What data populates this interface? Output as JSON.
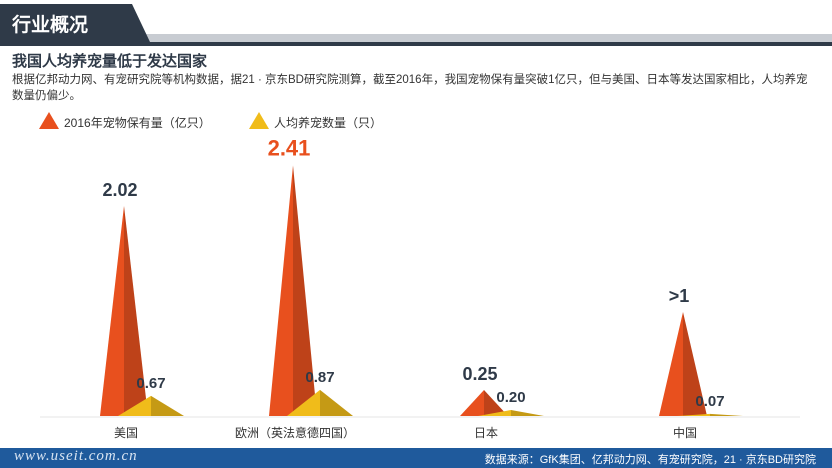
{
  "header": {
    "title": "行业概况"
  },
  "subtitle": "我国人均养宠量低于发达国家",
  "description": "根据亿邦动力网、有宠研究院等机构数据，据21 · 京东BD研究院测算，截至2016年，我国宠物保有量突破1亿只，但与美国、日本等发达国家相比，人均养宠数量仍偏少。",
  "footer": {
    "watermark": "www.useit.com.cn",
    "source": "数据来源：GfK集团、亿邦动力网、有宠研究院，21 · 京东BD研究院"
  },
  "colors": {
    "pet_count": "#e8501e",
    "per_capita": "#f0bc1a",
    "header": "#2f3a48",
    "footer": "#1f5a9c"
  },
  "chart_data": {
    "type": "bar",
    "marker": "cone",
    "categories": [
      "美国",
      "欧洲（英法意德四国）",
      "日本",
      "中国"
    ],
    "series": [
      {
        "name": "2016年宠物保有量（亿只）",
        "values": [
          2.02,
          2.41,
          0.25,
          1
        ],
        "labels": [
          "2.02",
          "2.41",
          "0.25",
          ">1"
        ]
      },
      {
        "name": "人均养宠数量（只）",
        "values": [
          0.67,
          0.87,
          0.2,
          0.07
        ],
        "labels": [
          "0.67",
          "0.87",
          "0.20",
          "0.07"
        ]
      }
    ],
    "legend": "top-left",
    "grid": false
  }
}
